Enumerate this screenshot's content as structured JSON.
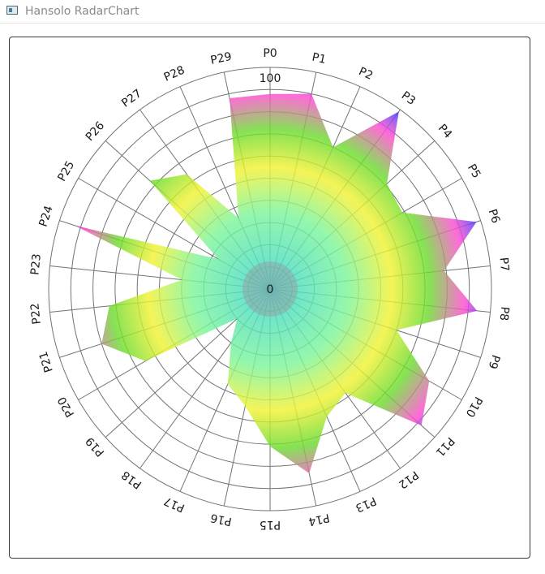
{
  "window": {
    "title": "Hansolo RadarChart"
  },
  "chart_data": {
    "type": "radar",
    "title": "",
    "ylim": [
      0,
      100
    ],
    "tick_labels": [
      "0",
      "100"
    ],
    "grid": true,
    "categories": [
      "P0",
      "P1",
      "P2",
      "P3",
      "P4",
      "P5",
      "P6",
      "P7",
      "P8",
      "P9",
      "P10",
      "P11",
      "P12",
      "P13",
      "P14",
      "P15",
      "P16",
      "P17",
      "P18",
      "P19",
      "P20",
      "P21",
      "P22",
      "P23",
      "P24",
      "P25",
      "P26",
      "P27",
      "P28",
      "P29"
    ],
    "values": [
      88,
      90,
      70,
      99,
      71,
      69,
      98,
      79,
      94,
      60,
      83,
      92,
      58,
      63,
      85,
      71,
      54,
      47,
      30,
      20,
      65,
      80,
      73,
      40,
      93,
      27,
      73,
      64,
      35,
      88
    ],
    "gradient_stops": [
      "#38d3d3",
      "#7df59a",
      "#f2f232",
      "#6bdc2e",
      "#ff4bd0",
      "#2e3bff"
    ],
    "colors": {
      "grid": "#737373",
      "center": "#9a9a9a"
    }
  }
}
